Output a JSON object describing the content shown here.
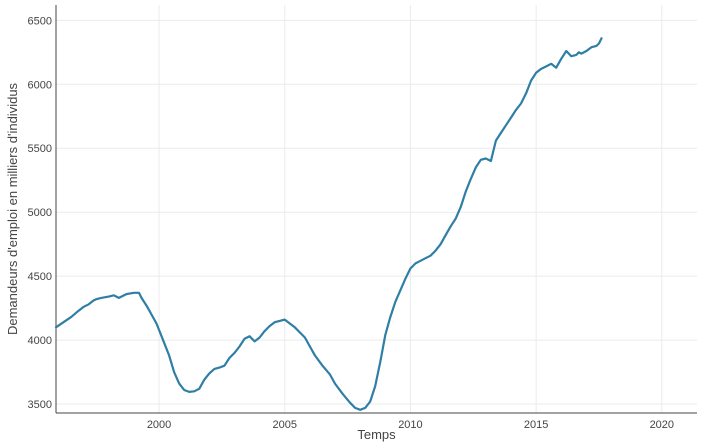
{
  "chart_data": {
    "type": "line",
    "xlabel": "Temps",
    "ylabel": "Demandeurs d'emploi en milliers d'individus",
    "xlim": [
      1995.9,
      2021.4
    ],
    "ylim": [
      3430,
      6620
    ],
    "x_ticks": [
      2000,
      2005,
      2010,
      2015,
      2020
    ],
    "y_ticks": [
      3500,
      4000,
      4500,
      5000,
      5500,
      6000,
      6500
    ],
    "grid": true,
    "legend": "none",
    "line_color": "#2f7ea6",
    "series": [
      {
        "x": [
          1995.9,
          1996.2,
          1996.5,
          1996.8,
          1997.0,
          1997.2,
          1997.4,
          1997.5,
          1997.7,
          1998.0,
          1998.2,
          1998.4,
          1998.5,
          1998.7,
          1999.0,
          1999.2,
          1999.3,
          1999.5,
          1999.7,
          1999.9,
          2000.2,
          2000.4,
          2000.6,
          2000.8,
          2001.0,
          2001.2,
          2001.4,
          2001.6,
          2001.8,
          2002.0,
          2002.2,
          2002.4,
          2002.6,
          2002.8,
          2003.0,
          2003.2,
          2003.4,
          2003.6,
          2003.8,
          2004.0,
          2004.2,
          2004.4,
          2004.6,
          2004.8,
          2005.0,
          2005.2,
          2005.4,
          2005.6,
          2005.8,
          2006.0,
          2006.2,
          2006.5,
          2006.8,
          2007.0,
          2007.3,
          2007.6,
          2007.8,
          2008.0,
          2008.2,
          2008.4,
          2008.6,
          2008.8,
          2009.0,
          2009.2,
          2009.4,
          2009.6,
          2009.8,
          2010.0,
          2010.2,
          2010.4,
          2010.6,
          2010.8,
          2011.0,
          2011.2,
          2011.4,
          2011.6,
          2011.8,
          2012.0,
          2012.2,
          2012.4,
          2012.6,
          2012.8,
          2013.0,
          2013.2,
          2013.3,
          2013.4,
          2013.6,
          2013.8,
          2014.0,
          2014.2,
          2014.4,
          2014.6,
          2014.8,
          2015.0,
          2015.2,
          2015.4,
          2015.6,
          2015.8,
          2016.0,
          2016.2,
          2016.4,
          2016.6,
          2016.7,
          2016.8,
          2017.0,
          2017.2,
          2017.4,
          2017.5,
          2017.6
        ],
        "values": [
          4100,
          4140,
          4180,
          4230,
          4260,
          4280,
          4310,
          4320,
          4330,
          4340,
          4350,
          4330,
          4340,
          4360,
          4370,
          4370,
          4330,
          4270,
          4200,
          4130,
          3980,
          3880,
          3750,
          3660,
          3610,
          3595,
          3600,
          3620,
          3690,
          3740,
          3775,
          3785,
          3800,
          3860,
          3900,
          3950,
          4010,
          4030,
          3990,
          4020,
          4070,
          4110,
          4140,
          4150,
          4160,
          4130,
          4100,
          4060,
          4020,
          3950,
          3880,
          3800,
          3730,
          3660,
          3580,
          3510,
          3470,
          3455,
          3470,
          3520,
          3640,
          3830,
          4040,
          4180,
          4300,
          4390,
          4480,
          4560,
          4600,
          4620,
          4640,
          4660,
          4700,
          4750,
          4820,
          4890,
          4950,
          5040,
          5160,
          5260,
          5350,
          5410,
          5420,
          5400,
          5480,
          5560,
          5620,
          5680,
          5740,
          5800,
          5850,
          5930,
          6030,
          6090,
          6120,
          6140,
          6160,
          6130,
          6200,
          6260,
          6220,
          6230,
          6250,
          6240,
          6260,
          6290,
          6300,
          6320,
          6360
        ]
      }
    ]
  }
}
